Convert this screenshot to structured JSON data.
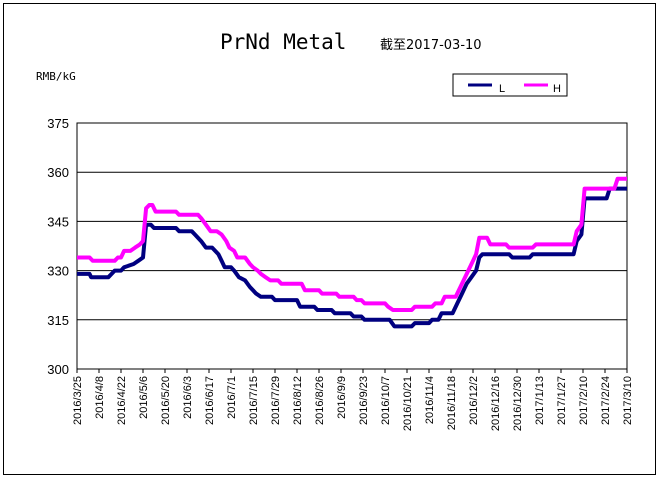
{
  "chart_data": {
    "type": "line",
    "title": "PrNd Metal",
    "subtitle": "截至2017-03-10",
    "ylabel": "RMB/kG",
    "ylim": [
      300,
      375
    ],
    "yticks": [
      300,
      315,
      330,
      345,
      360,
      375
    ],
    "grid": true,
    "legend_position": "top-right",
    "x_tick_labels": [
      "2016/3/25",
      "2016/4/8",
      "2016/4/22",
      "2016/5/6",
      "2016/5/20",
      "2016/6/3",
      "2016/6/17",
      "2016/7/1",
      "2016/7/15",
      "2016/7/29",
      "2016/8/12",
      "2016/8/26",
      "2016/9/9",
      "2016/9/23",
      "2016/10/7",
      "2016/10/21",
      "2016/11/4",
      "2016/11/18",
      "2016/12/2",
      "2016/12/16",
      "2016/12/30",
      "2017/1/13",
      "2017/1/27",
      "2017/2/10",
      "2017/2/24",
      "2017/3/10"
    ],
    "series": [
      {
        "name": "L",
        "color": "#000080",
        "points": [
          [
            "2016-03-25",
            329
          ],
          [
            "2016-04-02",
            329
          ],
          [
            "2016-04-03",
            328
          ],
          [
            "2016-04-14",
            328
          ],
          [
            "2016-04-16",
            329
          ],
          [
            "2016-04-18",
            330
          ],
          [
            "2016-04-22",
            330
          ],
          [
            "2016-04-24",
            331
          ],
          [
            "2016-04-30",
            332
          ],
          [
            "2016-05-03",
            333
          ],
          [
            "2016-05-06",
            334
          ],
          [
            "2016-05-08",
            344
          ],
          [
            "2016-05-11",
            344
          ],
          [
            "2016-05-13",
            343
          ],
          [
            "2016-05-27",
            343
          ],
          [
            "2016-05-29",
            342
          ],
          [
            "2016-06-06",
            342
          ],
          [
            "2016-06-08",
            341
          ],
          [
            "2016-06-12",
            339
          ],
          [
            "2016-06-15",
            337
          ],
          [
            "2016-06-19",
            337
          ],
          [
            "2016-06-23",
            335
          ],
          [
            "2016-06-25",
            333
          ],
          [
            "2016-06-27",
            331
          ],
          [
            "2016-07-01",
            331
          ],
          [
            "2016-07-03",
            330
          ],
          [
            "2016-07-06",
            328
          ],
          [
            "2016-07-10",
            327
          ],
          [
            "2016-07-13",
            325
          ],
          [
            "2016-07-15",
            324
          ],
          [
            "2016-07-17",
            323
          ],
          [
            "2016-07-20",
            322
          ],
          [
            "2016-07-27",
            322
          ],
          [
            "2016-07-29",
            321
          ],
          [
            "2016-08-12",
            321
          ],
          [
            "2016-08-14",
            319
          ],
          [
            "2016-08-23",
            319
          ],
          [
            "2016-08-25",
            318
          ],
          [
            "2016-09-03",
            318
          ],
          [
            "2016-09-05",
            317
          ],
          [
            "2016-09-15",
            317
          ],
          [
            "2016-09-17",
            316
          ],
          [
            "2016-09-22",
            316
          ],
          [
            "2016-09-24",
            315
          ],
          [
            "2016-10-10",
            315
          ],
          [
            "2016-10-13",
            313
          ],
          [
            "2016-10-24",
            313
          ],
          [
            "2016-10-26",
            314
          ],
          [
            "2016-11-04",
            314
          ],
          [
            "2016-11-06",
            315
          ],
          [
            "2016-11-10",
            315
          ],
          [
            "2016-11-12",
            317
          ],
          [
            "2016-11-19",
            317
          ],
          [
            "2016-11-22",
            320
          ],
          [
            "2016-11-25",
            323
          ],
          [
            "2016-11-28",
            326
          ],
          [
            "2016-12-01",
            328
          ],
          [
            "2016-12-04",
            330
          ],
          [
            "2016-12-06",
            334
          ],
          [
            "2016-12-08",
            335
          ],
          [
            "2016-12-25",
            335
          ],
          [
            "2016-12-27",
            334
          ],
          [
            "2017-01-07",
            334
          ],
          [
            "2017-01-09",
            335
          ],
          [
            "2017-02-04",
            335
          ],
          [
            "2017-02-06",
            339
          ],
          [
            "2017-02-09",
            341
          ],
          [
            "2017-02-11",
            352
          ],
          [
            "2017-02-25",
            352
          ],
          [
            "2017-02-27",
            355
          ],
          [
            "2017-03-10",
            355
          ]
        ]
      },
      {
        "name": "H",
        "color": "#ff00ff",
        "points": [
          [
            "2016-03-25",
            334
          ],
          [
            "2016-04-02",
            334
          ],
          [
            "2016-04-04",
            333
          ],
          [
            "2016-04-18",
            333
          ],
          [
            "2016-04-20",
            334
          ],
          [
            "2016-04-22",
            334
          ],
          [
            "2016-04-24",
            336
          ],
          [
            "2016-04-28",
            336
          ],
          [
            "2016-05-01",
            337
          ],
          [
            "2016-05-04",
            338
          ],
          [
            "2016-05-06",
            339
          ],
          [
            "2016-05-08",
            349
          ],
          [
            "2016-05-10",
            350
          ],
          [
            "2016-05-12",
            350
          ],
          [
            "2016-05-14",
            348
          ],
          [
            "2016-05-27",
            348
          ],
          [
            "2016-05-29",
            347
          ],
          [
            "2016-06-10",
            347
          ],
          [
            "2016-06-12",
            346
          ],
          [
            "2016-06-15",
            344
          ],
          [
            "2016-06-18",
            342
          ],
          [
            "2016-06-22",
            342
          ],
          [
            "2016-06-25",
            341
          ],
          [
            "2016-06-28",
            339
          ],
          [
            "2016-06-30",
            337
          ],
          [
            "2016-07-03",
            336
          ],
          [
            "2016-07-05",
            334
          ],
          [
            "2016-07-10",
            334
          ],
          [
            "2016-07-13",
            332
          ],
          [
            "2016-07-15",
            331
          ],
          [
            "2016-07-18",
            330
          ],
          [
            "2016-07-20",
            329
          ],
          [
            "2016-07-23",
            328
          ],
          [
            "2016-07-26",
            327
          ],
          [
            "2016-07-31",
            327
          ],
          [
            "2016-08-02",
            326
          ],
          [
            "2016-08-15",
            326
          ],
          [
            "2016-08-17",
            324
          ],
          [
            "2016-08-26",
            324
          ],
          [
            "2016-08-28",
            323
          ],
          [
            "2016-09-06",
            323
          ],
          [
            "2016-09-08",
            322
          ],
          [
            "2016-09-17",
            322
          ],
          [
            "2016-09-19",
            321
          ],
          [
            "2016-09-22",
            321
          ],
          [
            "2016-09-24",
            320
          ],
          [
            "2016-10-07",
            320
          ],
          [
            "2016-10-09",
            319
          ],
          [
            "2016-10-12",
            318
          ],
          [
            "2016-10-24",
            318
          ],
          [
            "2016-10-26",
            319
          ],
          [
            "2016-11-06",
            319
          ],
          [
            "2016-11-08",
            320
          ],
          [
            "2016-11-12",
            320
          ],
          [
            "2016-11-14",
            322
          ],
          [
            "2016-11-21",
            322
          ],
          [
            "2016-11-24",
            325
          ],
          [
            "2016-11-27",
            328
          ],
          [
            "2016-11-30",
            331
          ],
          [
            "2016-12-02",
            333
          ],
          [
            "2016-12-04",
            335
          ],
          [
            "2016-12-06",
            340
          ],
          [
            "2016-12-11",
            340
          ],
          [
            "2016-12-13",
            338
          ],
          [
            "2016-12-23",
            338
          ],
          [
            "2016-12-25",
            337
          ],
          [
            "2017-01-09",
            337
          ],
          [
            "2017-01-11",
            338
          ],
          [
            "2017-02-04",
            338
          ],
          [
            "2017-02-06",
            342
          ],
          [
            "2017-02-09",
            344
          ],
          [
            "2017-02-11",
            355
          ],
          [
            "2017-03-02",
            355
          ],
          [
            "2017-03-04",
            358
          ],
          [
            "2017-03-10",
            358
          ]
        ]
      }
    ]
  }
}
